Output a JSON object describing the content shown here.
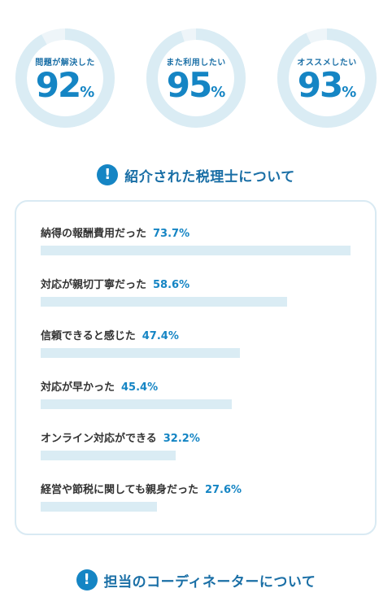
{
  "stats": [
    {
      "label": "問題が解決した",
      "value": "92",
      "unit": "%",
      "fraction": 0.92
    },
    {
      "label": "また利用したい",
      "value": "95",
      "unit": "%",
      "fraction": 0.95
    },
    {
      "label": "オススメしたい",
      "value": "93",
      "unit": "%",
      "fraction": 0.93
    }
  ],
  "section1": {
    "icon": "!",
    "title": "紹介された税理士について"
  },
  "section2": {
    "icon": "!",
    "title": "担当のコーディネーターについて"
  },
  "colors": {
    "accent": "#1585c4",
    "track": "#daecf4",
    "title": "#1a6fa6"
  },
  "chart_data": {
    "type": "bar",
    "orientation": "horizontal",
    "categories": [
      "納得の報酬費用だった",
      "対応が親切丁寧だった",
      "信頼できると感じた",
      "対応が早かった",
      "オンライン対応ができる",
      "経営や節税に関しても親身だった"
    ],
    "values": [
      73.7,
      58.6,
      47.4,
      45.4,
      32.2,
      27.6
    ],
    "value_labels": [
      "73.7%",
      "58.6%",
      "47.4%",
      "45.4%",
      "32.2%",
      "27.6%"
    ],
    "xlim": [
      0,
      73.7
    ],
    "grid": false,
    "legend": "none"
  }
}
